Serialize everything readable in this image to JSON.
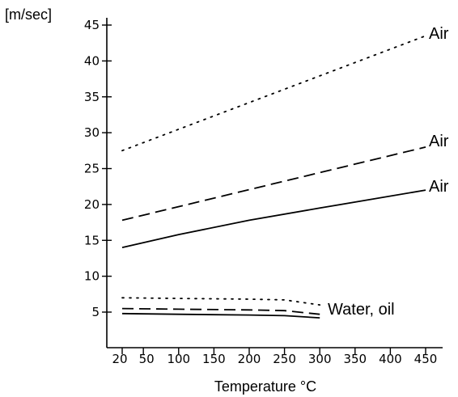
{
  "chart_data": {
    "type": "line",
    "title": "",
    "xlabel": "Temperature °C",
    "ylabel": "[m/sec]",
    "xlim": [
      20,
      470
    ],
    "ylim": [
      0,
      45
    ],
    "x_ticks": [
      20,
      50,
      100,
      150,
      200,
      250,
      300,
      350,
      400,
      450
    ],
    "y_ticks": [
      5,
      10,
      15,
      20,
      25,
      30,
      35,
      40,
      45
    ],
    "grid": false,
    "series": [
      {
        "name": "Air",
        "style": "dotted",
        "x": [
          20,
          450
        ],
        "y": [
          27.5,
          43.5
        ]
      },
      {
        "name": "Air",
        "style": "dashed",
        "x": [
          20,
          450
        ],
        "y": [
          17.8,
          28
        ]
      },
      {
        "name": "Air",
        "style": "solid",
        "x": [
          20,
          100,
          200,
          300,
          450
        ],
        "y": [
          14,
          15.8,
          17.8,
          19.5,
          22
        ]
      },
      {
        "name": "",
        "style": "dotted",
        "x": [
          20,
          100,
          200,
          250,
          300
        ],
        "y": [
          7,
          6.9,
          6.8,
          6.7,
          6
        ]
      },
      {
        "name": "",
        "style": "dashed",
        "x": [
          20,
          100,
          200,
          250,
          300
        ],
        "y": [
          5.5,
          5.4,
          5.3,
          5.2,
          4.7
        ]
      },
      {
        "name": "Water, oil",
        "style": "solid",
        "x": [
          20,
          100,
          200,
          250,
          300
        ],
        "y": [
          4.8,
          4.7,
          4.6,
          4.5,
          4.2
        ]
      }
    ]
  }
}
